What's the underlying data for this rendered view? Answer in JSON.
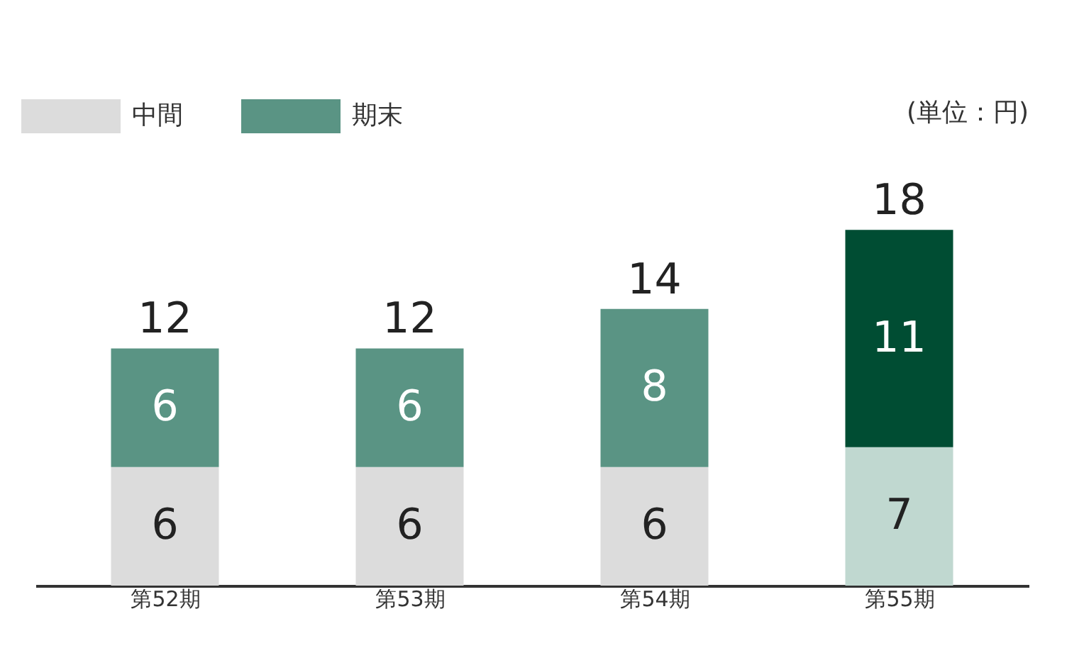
{
  "chart_data": {
    "type": "bar",
    "stacked": true,
    "categories": [
      "第52期",
      "第53期",
      "第54期",
      "第55期"
    ],
    "series": [
      {
        "name": "中間",
        "color": "#dcdcdc",
        "colors": [
          "#dcdcdc",
          "#dcdcdc",
          "#dcdcdc",
          "#c0d8d0"
        ],
        "values": [
          6,
          6,
          6,
          7
        ]
      },
      {
        "name": "期末",
        "color": "#5a9484",
        "colors": [
          "#5a9484",
          "#5a9484",
          "#5a9484",
          "#004d33"
        ],
        "values": [
          6,
          6,
          8,
          11
        ]
      }
    ],
    "data_labels": true,
    "totals": [
      "12",
      "12",
      "14",
      "18"
    ],
    "legend": "top left",
    "grid": false,
    "annotations": [
      "(単位：円)"
    ]
  }
}
